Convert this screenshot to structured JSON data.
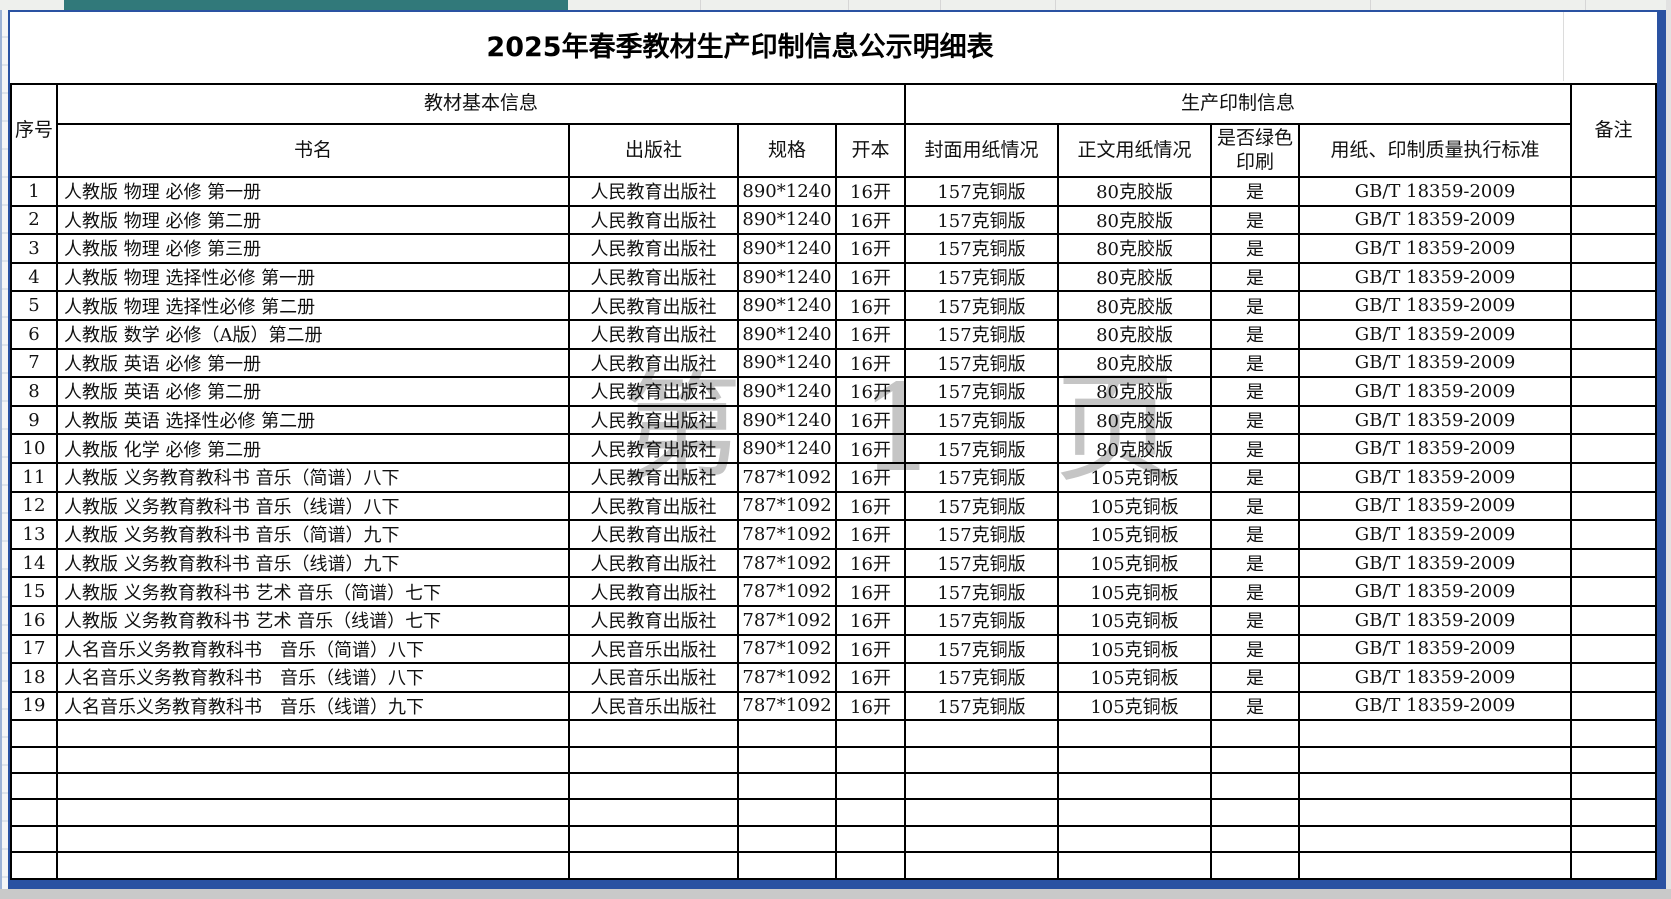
{
  "window": {
    "teal_bar_color": "#31797a",
    "page_border_color": "#2a52a2",
    "watermark_text": "第 1 页",
    "watermark_color": "#8d8d8d"
  },
  "title": "2025年春季教材生产印制信息公示明细表",
  "table": {
    "header": {
      "col_index": "序号",
      "group_basic": "教材基本信息",
      "group_print": "生产印制信息",
      "remark": "备注",
      "sub": [
        "书名",
        "出版社",
        "规格",
        "开本",
        "封面用纸情况",
        "正文用纸情况",
        "是否绿色印刷",
        "用纸、印制质量执行标准"
      ]
    },
    "rows": [
      [
        "1",
        "人教版 物理 必修 第一册",
        "人民教育出版社",
        "890*1240",
        "16开",
        "157克铜版",
        "80克胶版",
        "是",
        "GB/T 18359-2009",
        ""
      ],
      [
        "2",
        "人教版 物理 必修 第二册",
        "人民教育出版社",
        "890*1240",
        "16开",
        "157克铜版",
        "80克胶版",
        "是",
        "GB/T 18359-2009",
        ""
      ],
      [
        "3",
        "人教版 物理 必修 第三册",
        "人民教育出版社",
        "890*1240",
        "16开",
        "157克铜版",
        "80克胶版",
        "是",
        "GB/T 18359-2009",
        ""
      ],
      [
        "4",
        "人教版 物理 选择性必修 第一册",
        "人民教育出版社",
        "890*1240",
        "16开",
        "157克铜版",
        "80克胶版",
        "是",
        "GB/T 18359-2009",
        ""
      ],
      [
        "5",
        "人教版 物理 选择性必修 第二册",
        "人民教育出版社",
        "890*1240",
        "16开",
        "157克铜版",
        "80克胶版",
        "是",
        "GB/T 18359-2009",
        ""
      ],
      [
        "6",
        "人教版 数学 必修（A版）第二册",
        "人民教育出版社",
        "890*1240",
        "16开",
        "157克铜版",
        "80克胶版",
        "是",
        "GB/T 18359-2009",
        ""
      ],
      [
        "7",
        "人教版 英语 必修 第一册",
        "人民教育出版社",
        "890*1240",
        "16开",
        "157克铜版",
        "80克胶版",
        "是",
        "GB/T 18359-2009",
        ""
      ],
      [
        "8",
        "人教版 英语 必修 第二册",
        "人民教育出版社",
        "890*1240",
        "16开",
        "157克铜版",
        "80克胶版",
        "是",
        "GB/T 18359-2009",
        ""
      ],
      [
        "9",
        "人教版 英语 选择性必修 第二册",
        "人民教育出版社",
        "890*1240",
        "16开",
        "157克铜版",
        "80克胶版",
        "是",
        "GB/T 18359-2009",
        ""
      ],
      [
        "10",
        "人教版 化学 必修 第二册",
        "人民教育出版社",
        "890*1240",
        "16开",
        "157克铜版",
        "80克胶版",
        "是",
        "GB/T 18359-2009",
        ""
      ],
      [
        "11",
        "人教版 义务教育教科书 音乐（简谱）八下",
        "人民教育出版社",
        "787*1092",
        "16开",
        "157克铜版",
        "105克铜板",
        "是",
        "GB/T 18359-2009",
        ""
      ],
      [
        "12",
        "人教版 义务教育教科书 音乐（线谱）八下",
        "人民教育出版社",
        "787*1092",
        "16开",
        "157克铜版",
        "105克铜板",
        "是",
        "GB/T 18359-2009",
        ""
      ],
      [
        "13",
        "人教版 义务教育教科书 音乐（简谱）九下",
        "人民教育出版社",
        "787*1092",
        "16开",
        "157克铜版",
        "105克铜板",
        "是",
        "GB/T 18359-2009",
        ""
      ],
      [
        "14",
        "人教版 义务教育教科书 音乐（线谱）九下",
        "人民教育出版社",
        "787*1092",
        "16开",
        "157克铜版",
        "105克铜板",
        "是",
        "GB/T 18359-2009",
        ""
      ],
      [
        "15",
        "人教版 义务教育教科书 艺术 音乐（简谱）七下",
        "人民教育出版社",
        "787*1092",
        "16开",
        "157克铜版",
        "105克铜板",
        "是",
        "GB/T 18359-2009",
        ""
      ],
      [
        "16",
        "人教版 义务教育教科书 艺术 音乐（线谱）七下",
        "人民教育出版社",
        "787*1092",
        "16开",
        "157克铜版",
        "105克铜板",
        "是",
        "GB/T 18359-2009",
        ""
      ],
      [
        "17",
        "人名音乐义务教育教科书　音乐（简谱）八下",
        "人民音乐出版社",
        "787*1092",
        "16开",
        "157克铜版",
        "105克铜板",
        "是",
        "GB/T 18359-2009",
        ""
      ],
      [
        "18",
        "人名音乐义务教育教科书　音乐（线谱）八下",
        "人民音乐出版社",
        "787*1092",
        "16开",
        "157克铜版",
        "105克铜板",
        "是",
        "GB/T 18359-2009",
        ""
      ],
      [
        "19",
        "人名音乐义务教育教科书　音乐（线谱）九下",
        "人民音乐出版社",
        "787*1092",
        "16开",
        "157克铜版",
        "105克铜板",
        "是",
        "GB/T 18359-2009",
        ""
      ]
    ],
    "empty_row_count": 6
  }
}
